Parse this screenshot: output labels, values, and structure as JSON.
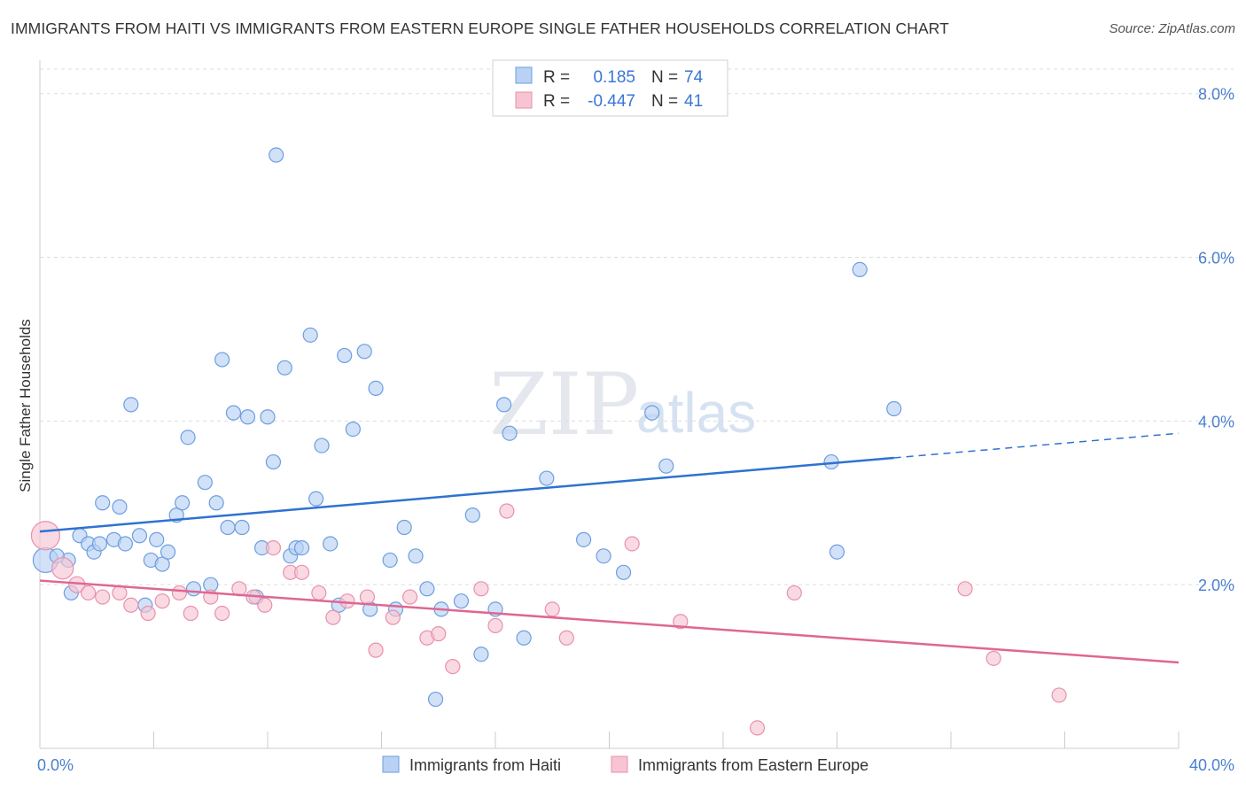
{
  "title": "IMMIGRANTS FROM HAITI VS IMMIGRANTS FROM EASTERN EUROPE SINGLE FATHER HOUSEHOLDS CORRELATION CHART",
  "source": "Source: ZipAtlas.com",
  "watermark": {
    "zip": "ZIP",
    "atlas": "atlas"
  },
  "colors": {
    "haiti_fill": "#b9d1f3",
    "haiti_stroke": "#6d9ee0",
    "haiti_line": "#2f72d0",
    "ee_fill": "#f6c4d3",
    "ee_stroke": "#e891ad",
    "ee_line": "#e06692",
    "grid": "#dddddd",
    "tick_text": "#4a7fd0"
  },
  "legend": {
    "rows": [
      {
        "r_label": "R =",
        "r_value": "0.185",
        "n_label": "N =",
        "n_value": "74"
      },
      {
        "r_label": "R =",
        "r_value": "-0.447",
        "n_label": "N =",
        "n_value": "41"
      }
    ]
  },
  "chart_data": {
    "type": "scatter",
    "title": "IMMIGRANTS FROM HAITI VS IMMIGRANTS FROM EASTERN EUROPE SINGLE FATHER HOUSEHOLDS CORRELATION CHART",
    "xlabel": "",
    "ylabel": "Single Father Households",
    "xlim": [
      0,
      40
    ],
    "ylim": [
      0,
      8.3
    ],
    "x_tick_labels": [
      "0.0%",
      "40.0%"
    ],
    "y_ticks": [
      2,
      4,
      6,
      8
    ],
    "y_tick_labels": [
      "2.0%",
      "4.0%",
      "6.0%",
      "8.0%"
    ],
    "grid": true,
    "legend_position": "top-center",
    "series": [
      {
        "name": "Immigrants from Haiti",
        "r": 0.185,
        "n": 74,
        "trend": {
          "x0": 0,
          "y0": 2.65,
          "x1": 30,
          "y1": 3.55,
          "dash_x1": 40,
          "dash_y1": 3.85
        },
        "points": [
          [
            0.2,
            2.3,
            14
          ],
          [
            1.0,
            2.3,
            8
          ],
          [
            0.6,
            2.35,
            8
          ],
          [
            1.1,
            1.9,
            8
          ],
          [
            1.4,
            2.6,
            8
          ],
          [
            1.7,
            2.5,
            8
          ],
          [
            1.9,
            2.4,
            8
          ],
          [
            2.1,
            2.5,
            8
          ],
          [
            2.2,
            3.0,
            8
          ],
          [
            2.6,
            2.55,
            8
          ],
          [
            2.8,
            2.95,
            8
          ],
          [
            3.0,
            2.5,
            8
          ],
          [
            3.5,
            2.6,
            8
          ],
          [
            3.2,
            4.2,
            8
          ],
          [
            3.7,
            1.75,
            8
          ],
          [
            3.9,
            2.3,
            8
          ],
          [
            4.1,
            2.55,
            8
          ],
          [
            4.3,
            2.25,
            8
          ],
          [
            4.5,
            2.4,
            8
          ],
          [
            4.8,
            2.85,
            8
          ],
          [
            5.0,
            3.0,
            8
          ],
          [
            5.2,
            3.8,
            8
          ],
          [
            5.4,
            1.95,
            8
          ],
          [
            5.8,
            3.25,
            8
          ],
          [
            6.0,
            2.0,
            8
          ],
          [
            6.2,
            3.0,
            8
          ],
          [
            6.4,
            4.75,
            8
          ],
          [
            6.6,
            2.7,
            8
          ],
          [
            6.8,
            4.1,
            8
          ],
          [
            7.1,
            2.7,
            8
          ],
          [
            7.3,
            4.05,
            8
          ],
          [
            7.6,
            1.85,
            8
          ],
          [
            7.8,
            2.45,
            8
          ],
          [
            8.0,
            4.05,
            8
          ],
          [
            8.2,
            3.5,
            8
          ],
          [
            8.3,
            7.25,
            8
          ],
          [
            8.6,
            4.65,
            8
          ],
          [
            8.8,
            2.35,
            8
          ],
          [
            9.0,
            2.45,
            8
          ],
          [
            9.2,
            2.45,
            8
          ],
          [
            9.5,
            5.05,
            8
          ],
          [
            9.7,
            3.05,
            8
          ],
          [
            9.9,
            3.7,
            8
          ],
          [
            10.2,
            2.5,
            8
          ],
          [
            10.5,
            1.75,
            8
          ],
          [
            10.7,
            4.8,
            8
          ],
          [
            11.0,
            3.9,
            8
          ],
          [
            11.4,
            4.85,
            8
          ],
          [
            11.8,
            4.4,
            8
          ],
          [
            11.6,
            1.7,
            8
          ],
          [
            12.3,
            2.3,
            8
          ],
          [
            12.5,
            1.7,
            8
          ],
          [
            12.8,
            2.7,
            8
          ],
          [
            13.2,
            2.35,
            8
          ],
          [
            13.6,
            1.95,
            8
          ],
          [
            13.9,
            0.6,
            8
          ],
          [
            14.1,
            1.7,
            8
          ],
          [
            14.8,
            1.8,
            8
          ],
          [
            15.2,
            2.85,
            8
          ],
          [
            15.5,
            1.15,
            8
          ],
          [
            16.0,
            1.7,
            8
          ],
          [
            16.3,
            4.2,
            8
          ],
          [
            16.5,
            3.85,
            8
          ],
          [
            17.0,
            1.35,
            8
          ],
          [
            17.8,
            3.3,
            8
          ],
          [
            19.1,
            2.55,
            8
          ],
          [
            19.8,
            2.35,
            8
          ],
          [
            20.5,
            2.15,
            8
          ],
          [
            21.5,
            4.1,
            8
          ],
          [
            22.0,
            3.45,
            8
          ],
          [
            27.8,
            3.5,
            8
          ],
          [
            28.0,
            2.4,
            8
          ],
          [
            28.8,
            5.85,
            8
          ],
          [
            30.0,
            4.15,
            8
          ]
        ]
      },
      {
        "name": "Immigrants from Eastern Europe",
        "r": -0.447,
        "n": 41,
        "trend": {
          "x0": 0,
          "y0": 2.05,
          "x1": 40,
          "y1": 1.05
        },
        "points": [
          [
            0.2,
            2.6,
            16
          ],
          [
            0.8,
            2.2,
            12
          ],
          [
            1.3,
            2.0,
            9
          ],
          [
            1.7,
            1.9,
            8
          ],
          [
            2.2,
            1.85,
            8
          ],
          [
            2.8,
            1.9,
            8
          ],
          [
            3.2,
            1.75,
            8
          ],
          [
            3.8,
            1.65,
            8
          ],
          [
            4.3,
            1.8,
            8
          ],
          [
            4.9,
            1.9,
            8
          ],
          [
            5.3,
            1.65,
            8
          ],
          [
            6.0,
            1.85,
            8
          ],
          [
            6.4,
            1.65,
            8
          ],
          [
            7.0,
            1.95,
            8
          ],
          [
            7.5,
            1.85,
            8
          ],
          [
            7.9,
            1.75,
            8
          ],
          [
            8.2,
            2.45,
            8
          ],
          [
            8.8,
            2.15,
            8
          ],
          [
            9.2,
            2.15,
            8
          ],
          [
            9.8,
            1.9,
            8
          ],
          [
            10.3,
            1.6,
            8
          ],
          [
            10.8,
            1.8,
            8
          ],
          [
            11.5,
            1.85,
            8
          ],
          [
            11.8,
            1.2,
            8
          ],
          [
            12.4,
            1.6,
            8
          ],
          [
            13.0,
            1.85,
            8
          ],
          [
            13.6,
            1.35,
            8
          ],
          [
            14.0,
            1.4,
            8
          ],
          [
            14.5,
            1.0,
            8
          ],
          [
            15.5,
            1.95,
            8
          ],
          [
            16.0,
            1.5,
            8
          ],
          [
            16.4,
            2.9,
            8
          ],
          [
            18.0,
            1.7,
            8
          ],
          [
            18.5,
            1.35,
            8
          ],
          [
            20.8,
            2.5,
            8
          ],
          [
            22.5,
            1.55,
            8
          ],
          [
            25.2,
            0.25,
            8
          ],
          [
            26.5,
            1.9,
            8
          ],
          [
            32.5,
            1.95,
            8
          ],
          [
            33.5,
            1.1,
            8
          ],
          [
            35.8,
            0.65,
            8
          ]
        ]
      }
    ]
  }
}
